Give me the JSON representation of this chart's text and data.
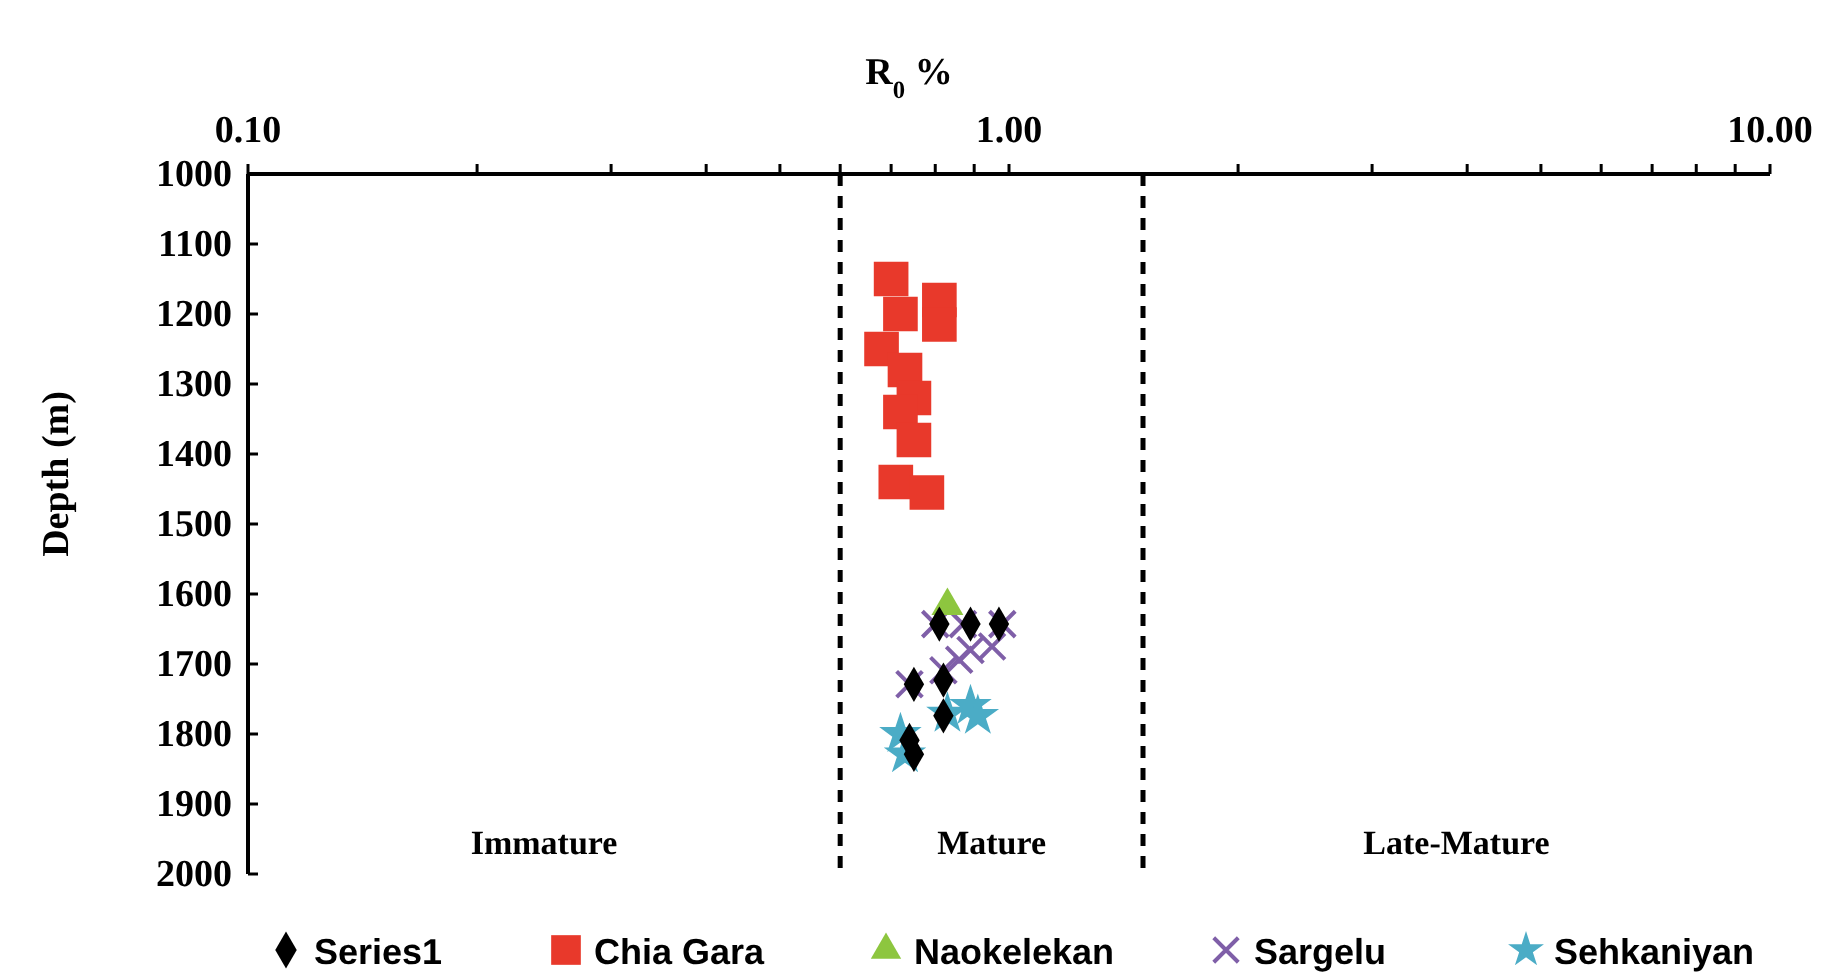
{
  "chart_data": {
    "type": "scatter",
    "xlabel": "R$_{0}$ %",
    "ylabel": "Depth (m)",
    "log": "x",
    "xlim": [
      0.1,
      10
    ],
    "ylim": [
      2000,
      1000
    ],
    "xticks": [
      {
        "value": 0.1,
        "label": "0.10"
      },
      {
        "value": 0.2,
        "label": null
      },
      {
        "value": 0.3,
        "label": null
      },
      {
        "value": 0.4,
        "label": null
      },
      {
        "value": 0.5,
        "label": null
      },
      {
        "value": 0.6,
        "label": null
      },
      {
        "value": 0.7,
        "label": null
      },
      {
        "value": 0.8,
        "label": null
      },
      {
        "value": 0.9,
        "label": null
      },
      {
        "value": 1,
        "label": "1.00"
      },
      {
        "value": 2,
        "label": null
      },
      {
        "value": 3,
        "label": null
      },
      {
        "value": 4,
        "label": null
      },
      {
        "value": 5,
        "label": null
      },
      {
        "value": 6,
        "label": null
      },
      {
        "value": 7,
        "label": null
      },
      {
        "value": 8,
        "label": null
      },
      {
        "value": 9,
        "label": null
      },
      {
        "value": 10,
        "label": "10.00"
      }
    ],
    "yticks": [
      1000,
      1100,
      1200,
      1300,
      1400,
      1500,
      1600,
      1700,
      1800,
      1900,
      2000
    ],
    "grid": false,
    "legend": "bottom",
    "ref_lines": [
      {
        "axis": "x",
        "value": 0.6,
        "label": null,
        "color": "#000000",
        "line_style": "dashed"
      },
      {
        "axis": "x",
        "value": 1.5,
        "label": null,
        "color": "#000000",
        "line_style": "dashed"
      }
    ],
    "annotations": [
      "Immature",
      "Mature",
      "Late-Mature"
    ],
    "series": [
      {
        "name": "Series1",
        "color": "#000000",
        "marker": "diamond",
        "x": [
          0.81,
          0.89,
          0.97,
          0.75,
          0.82,
          0.82,
          0.74,
          0.75
        ],
        "values": [
          1643,
          1643,
          1643,
          1729,
          1723,
          1774,
          1809,
          1829
        ]
      },
      {
        "name": "Chia Gara",
        "color": "#e8392b",
        "marker": "square",
        "x": [
          0.7,
          0.81,
          0.81,
          0.72,
          0.68,
          0.73,
          0.75,
          0.72,
          0.75,
          0.71,
          0.78
        ],
        "values": [
          1150,
          1180,
          1215,
          1200,
          1250,
          1280,
          1320,
          1340,
          1380,
          1440,
          1455
        ]
      },
      {
        "name": "Naokelekan",
        "color": "#8dc63f",
        "marker": "triangle",
        "x": [
          0.83
        ],
        "values": [
          1617
        ]
      },
      {
        "name": "Sargelu",
        "color": "#7f5fa8",
        "marker": "cross",
        "x": [
          0.8,
          0.87,
          0.98,
          0.89,
          0.95,
          0.86,
          0.82,
          0.74
        ],
        "values": [
          1643,
          1643,
          1643,
          1680,
          1675,
          1694,
          1709,
          1729
        ]
      },
      {
        "name": "Sehkaniyan",
        "color": "#4bacc6",
        "marker": "star",
        "x": [
          0.72,
          0.73,
          0.83,
          0.89,
          0.91
        ],
        "values": [
          1800,
          1829,
          1771,
          1760,
          1774
        ]
      }
    ]
  }
}
